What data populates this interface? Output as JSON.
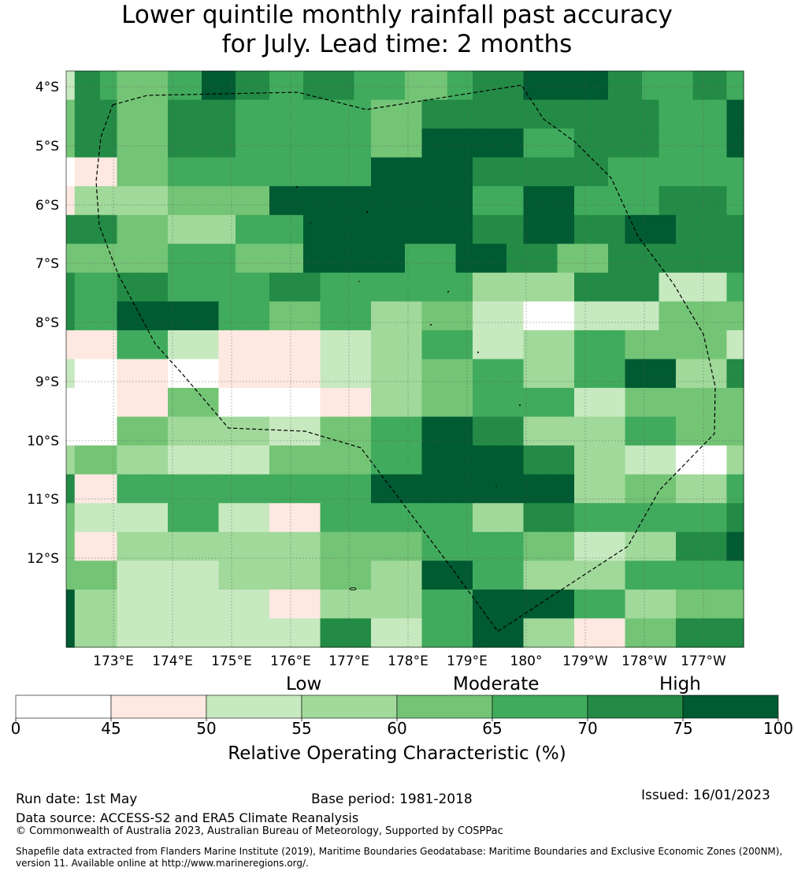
{
  "title_line1": "Lower quintile monthly rainfall past accuracy",
  "title_line2": "for July. Lead time: 2 months",
  "map": {
    "lat_labels": [
      "4°S",
      "5°S",
      "6°S",
      "7°S",
      "8°S",
      "9°S",
      "10°S",
      "11°S",
      "12°S"
    ],
    "lon_labels": [
      "173°E",
      "174°E",
      "175°E",
      "176°E",
      "177°E",
      "178°E",
      "179°E",
      "180°",
      "179°W",
      "178°W",
      "177°W"
    ],
    "cell_values_pct_bins": [
      [
        2,
        6,
        6,
        6,
        5,
        5,
        4,
        4,
        4,
        4,
        4,
        4,
        5,
        5,
        5,
        5,
        7,
        7,
        7,
        7,
        6,
        6,
        6,
        6,
        5,
        5,
        5,
        5,
        6,
        6,
        6,
        6,
        6,
        6,
        5,
        5,
        5,
        5,
        5,
        5,
        4,
        4,
        4,
        4,
        4,
        5,
        5,
        5,
        6,
        6,
        6,
        6,
        6,
        6,
        7,
        7,
        7,
        7,
        7,
        7,
        7,
        7,
        7,
        7,
        6,
        6,
        6,
        6,
        5,
        5,
        5,
        5,
        5,
        5,
        6,
        6,
        6,
        6,
        5,
        5
      ],
      [
        4,
        6,
        6,
        6,
        6,
        6,
        4,
        4,
        4,
        4,
        4,
        4,
        6,
        6,
        6,
        6,
        6,
        6,
        6,
        6,
        5,
        5,
        5,
        5,
        5,
        5,
        5,
        5,
        5,
        5,
        5,
        5,
        5,
        5,
        5,
        5,
        4,
        4,
        4,
        4,
        4,
        4,
        6,
        6,
        6,
        6,
        6,
        6,
        6,
        6,
        6,
        6,
        6,
        6,
        6,
        6,
        6,
        6,
        6,
        6,
        6,
        6,
        6,
        6,
        6,
        6,
        6,
        6,
        6,
        6,
        5,
        5,
        5,
        5,
        5,
        5,
        5,
        5,
        7,
        7
      ],
      [
        4,
        6,
        6,
        6,
        6,
        6,
        4,
        4,
        4,
        4,
        4,
        4,
        6,
        6,
        6,
        6,
        6,
        6,
        6,
        6,
        5,
        5,
        5,
        5,
        5,
        5,
        5,
        5,
        5,
        5,
        5,
        5,
        5,
        5,
        5,
        5,
        4,
        4,
        4,
        4,
        4,
        4,
        7,
        7,
        7,
        7,
        7,
        7,
        7,
        7,
        7,
        7,
        7,
        7,
        5,
        5,
        5,
        5,
        5,
        5,
        6,
        6,
        6,
        6,
        6,
        6,
        6,
        6,
        6,
        6,
        5,
        5,
        5,
        5,
        5,
        5,
        5,
        5,
        7,
        7
      ],
      [
        0,
        1,
        1,
        1,
        1,
        1,
        4,
        4,
        4,
        4,
        4,
        4,
        5,
        5,
        5,
        5,
        5,
        5,
        5,
        5,
        5,
        5,
        5,
        5,
        5,
        5,
        5,
        5,
        5,
        5,
        5,
        5,
        5,
        5,
        5,
        5,
        7,
        7,
        7,
        7,
        7,
        7,
        7,
        7,
        7,
        7,
        7,
        7,
        6,
        6,
        6,
        6,
        6,
        6,
        6,
        6,
        6,
        6,
        6,
        6,
        6,
        6,
        6,
        6,
        5,
        5,
        5,
        5,
        5,
        5,
        5,
        5,
        5,
        5,
        5,
        5,
        5,
        5,
        5,
        5
      ],
      [
        1,
        3,
        3,
        3,
        3,
        3,
        3,
        3,
        3,
        3,
        3,
        3,
        4,
        4,
        4,
        4,
        4,
        4,
        4,
        4,
        4,
        4,
        4,
        4,
        7,
        7,
        7,
        7,
        7,
        7,
        7,
        7,
        7,
        7,
        7,
        7,
        7,
        7,
        7,
        7,
        7,
        7,
        7,
        7,
        7,
        7,
        7,
        7,
        5,
        5,
        5,
        5,
        5,
        5,
        7,
        7,
        7,
        7,
        7,
        7,
        5,
        5,
        5,
        5,
        5,
        5,
        5,
        5,
        5,
        5,
        6,
        6,
        6,
        6,
        6,
        6,
        6,
        6,
        5,
        5
      ],
      [
        6,
        6,
        6,
        6,
        6,
        6,
        4,
        4,
        4,
        4,
        4,
        4,
        3,
        3,
        3,
        3,
        3,
        3,
        3,
        3,
        5,
        5,
        5,
        5,
        5,
        5,
        5,
        5,
        7,
        7,
        7,
        7,
        7,
        7,
        7,
        7,
        7,
        7,
        7,
        7,
        7,
        7,
        7,
        7,
        7,
        7,
        7,
        7,
        6,
        6,
        6,
        6,
        6,
        6,
        7,
        7,
        7,
        7,
        7,
        7,
        6,
        6,
        6,
        6,
        6,
        6,
        7,
        7,
        7,
        7,
        7,
        7,
        6,
        6,
        6,
        6,
        6,
        6,
        6,
        6
      ],
      [
        4,
        4,
        4,
        4,
        4,
        4,
        4,
        4,
        4,
        4,
        4,
        4,
        5,
        5,
        5,
        5,
        5,
        5,
        5,
        5,
        4,
        4,
        4,
        4,
        4,
        4,
        4,
        4,
        7,
        7,
        7,
        7,
        7,
        7,
        7,
        7,
        7,
        7,
        7,
        7,
        5,
        5,
        5,
        5,
        5,
        5,
        7,
        7,
        7,
        7,
        7,
        7,
        6,
        6,
        6,
        6,
        6,
        6,
        4,
        4,
        4,
        4,
        4,
        4,
        6,
        6,
        6,
        6,
        6,
        6,
        6,
        6,
        6,
        6,
        6,
        6,
        6,
        6,
        6,
        6
      ],
      [
        6,
        5,
        5,
        5,
        5,
        5,
        6,
        6,
        6,
        6,
        6,
        6,
        5,
        5,
        5,
        5,
        5,
        5,
        5,
        5,
        5,
        5,
        5,
        5,
        6,
        6,
        6,
        6,
        6,
        6,
        5,
        5,
        5,
        5,
        5,
        5,
        5,
        5,
        5,
        5,
        5,
        5,
        5,
        5,
        5,
        5,
        5,
        5,
        3,
        3,
        3,
        3,
        3,
        3,
        3,
        3,
        3,
        3,
        3,
        3,
        6,
        6,
        6,
        6,
        6,
        6,
        6,
        6,
        6,
        6,
        2,
        2,
        2,
        2,
        2,
        2,
        2,
        2,
        5,
        5
      ],
      [
        6,
        5,
        5,
        5,
        5,
        5,
        7,
        7,
        7,
        7,
        7,
        7,
        7,
        7,
        7,
        7,
        7,
        7,
        5,
        5,
        5,
        5,
        5,
        5,
        4,
        4,
        4,
        4,
        4,
        4,
        5,
        5,
        5,
        5,
        5,
        5,
        3,
        3,
        3,
        3,
        3,
        3,
        4,
        4,
        4,
        4,
        4,
        4,
        2,
        2,
        2,
        2,
        2,
        2,
        0,
        0,
        0,
        0,
        0,
        0,
        2,
        2,
        2,
        2,
        2,
        2,
        2,
        2,
        2,
        2,
        4,
        4,
        4,
        4,
        4,
        4,
        4,
        4,
        4,
        4
      ],
      [
        1,
        1,
        1,
        1,
        1,
        1,
        5,
        5,
        5,
        5,
        5,
        5,
        2,
        2,
        2,
        2,
        2,
        2,
        1,
        1,
        1,
        1,
        1,
        1,
        1,
        1,
        1,
        1,
        1,
        1,
        2,
        2,
        2,
        2,
        2,
        2,
        3,
        3,
        3,
        3,
        3,
        3,
        5,
        5,
        5,
        5,
        5,
        5,
        2,
        2,
        2,
        2,
        2,
        2,
        3,
        3,
        3,
        3,
        3,
        3,
        5,
        5,
        5,
        5,
        5,
        5,
        4,
        4,
        4,
        4,
        4,
        4,
        4,
        4,
        4,
        4,
        4,
        4,
        2,
        2
      ],
      [
        2,
        0,
        0,
        0,
        0,
        0,
        1,
        1,
        1,
        1,
        1,
        1,
        0,
        0,
        0,
        0,
        0,
        0,
        1,
        1,
        1,
        1,
        1,
        1,
        1,
        1,
        1,
        1,
        1,
        1,
        2,
        2,
        2,
        2,
        2,
        2,
        3,
        3,
        3,
        3,
        3,
        3,
        4,
        4,
        4,
        4,
        4,
        4,
        5,
        5,
        5,
        5,
        5,
        5,
        3,
        3,
        3,
        3,
        3,
        3,
        5,
        5,
        5,
        5,
        5,
        5,
        7,
        7,
        7,
        7,
        7,
        7,
        3,
        3,
        3,
        3,
        3,
        3,
        6,
        6
      ],
      [
        0,
        0,
        0,
        0,
        0,
        0,
        1,
        1,
        1,
        1,
        1,
        1,
        4,
        4,
        4,
        4,
        4,
        4,
        0,
        0,
        0,
        0,
        0,
        0,
        0,
        0,
        0,
        0,
        0,
        0,
        1,
        1,
        1,
        1,
        1,
        1,
        3,
        3,
        3,
        3,
        3,
        3,
        4,
        4,
        4,
        4,
        4,
        4,
        5,
        5,
        5,
        5,
        5,
        5,
        5,
        5,
        5,
        5,
        5,
        5,
        2,
        2,
        2,
        2,
        2,
        2,
        4,
        4,
        4,
        4,
        4,
        4,
        4,
        4,
        4,
        4,
        4,
        4,
        4,
        4
      ],
      [
        0,
        0,
        0,
        0,
        0,
        0,
        4,
        4,
        4,
        4,
        4,
        4,
        3,
        3,
        3,
        3,
        3,
        3,
        3,
        3,
        3,
        3,
        3,
        3,
        2,
        2,
        2,
        2,
        2,
        2,
        4,
        4,
        4,
        4,
        4,
        4,
        5,
        5,
        5,
        5,
        5,
        5,
        7,
        7,
        7,
        7,
        7,
        7,
        6,
        6,
        6,
        6,
        6,
        6,
        3,
        3,
        3,
        3,
        3,
        3,
        3,
        3,
        3,
        3,
        3,
        3,
        5,
        5,
        5,
        5,
        5,
        5,
        4,
        4,
        4,
        4,
        4,
        4,
        4,
        4
      ],
      [
        3,
        4,
        4,
        4,
        4,
        4,
        3,
        3,
        3,
        3,
        3,
        3,
        2,
        2,
        2,
        2,
        2,
        2,
        2,
        2,
        2,
        2,
        2,
        2,
        4,
        4,
        4,
        4,
        4,
        4,
        4,
        4,
        4,
        4,
        4,
        4,
        5,
        5,
        5,
        5,
        5,
        5,
        7,
        7,
        7,
        7,
        7,
        7,
        7,
        7,
        7,
        7,
        7,
        7,
        6,
        6,
        6,
        6,
        6,
        6,
        3,
        3,
        3,
        3,
        3,
        3,
        2,
        2,
        2,
        2,
        2,
        2,
        0,
        0,
        0,
        0,
        0,
        0,
        3,
        3
      ],
      [
        6,
        1,
        1,
        1,
        1,
        1,
        5,
        5,
        5,
        5,
        5,
        5,
        5,
        5,
        5,
        5,
        5,
        5,
        5,
        5,
        5,
        5,
        5,
        5,
        5,
        5,
        5,
        5,
        5,
        5,
        5,
        5,
        5,
        5,
        5,
        5,
        7,
        7,
        7,
        7,
        7,
        7,
        7,
        7,
        7,
        7,
        7,
        7,
        7,
        7,
        7,
        7,
        7,
        7,
        7,
        7,
        7,
        7,
        7,
        7,
        3,
        3,
        3,
        3,
        3,
        3,
        4,
        4,
        4,
        4,
        4,
        4,
        3,
        3,
        3,
        3,
        3,
        3,
        5,
        5
      ],
      [
        4,
        2,
        2,
        2,
        2,
        2,
        2,
        2,
        2,
        2,
        2,
        2,
        5,
        5,
        5,
        5,
        5,
        5,
        2,
        2,
        2,
        2,
        2,
        2,
        1,
        1,
        1,
        1,
        1,
        1,
        5,
        5,
        5,
        5,
        5,
        5,
        5,
        5,
        5,
        5,
        5,
        5,
        5,
        5,
        5,
        5,
        5,
        5,
        3,
        3,
        3,
        3,
        3,
        3,
        6,
        6,
        6,
        6,
        6,
        6,
        5,
        5,
        5,
        5,
        5,
        5,
        5,
        5,
        5,
        5,
        5,
        5,
        5,
        5,
        5,
        5,
        5,
        5,
        6,
        6
      ],
      [
        4,
        1,
        1,
        1,
        1,
        1,
        3,
        3,
        3,
        3,
        3,
        3,
        3,
        3,
        3,
        3,
        3,
        3,
        3,
        3,
        3,
        3,
        3,
        3,
        3,
        3,
        3,
        3,
        3,
        3,
        4,
        4,
        4,
        4,
        4,
        4,
        4,
        4,
        4,
        4,
        4,
        4,
        5,
        5,
        5,
        5,
        5,
        5,
        5,
        5,
        5,
        5,
        5,
        5,
        4,
        4,
        4,
        4,
        4,
        4,
        2,
        2,
        2,
        2,
        2,
        2,
        3,
        3,
        3,
        3,
        3,
        3,
        6,
        6,
        6,
        6,
        6,
        6,
        7,
        7
      ],
      [
        4,
        4,
        4,
        4,
        4,
        4,
        2,
        2,
        2,
        2,
        2,
        2,
        2,
        2,
        2,
        2,
        2,
        2,
        3,
        3,
        3,
        3,
        3,
        3,
        3,
        3,
        3,
        3,
        3,
        3,
        4,
        4,
        4,
        4,
        4,
        4,
        3,
        3,
        3,
        3,
        3,
        3,
        7,
        7,
        7,
        7,
        7,
        7,
        5,
        5,
        5,
        5,
        5,
        5,
        3,
        3,
        3,
        3,
        3,
        3,
        3,
        3,
        3,
        3,
        3,
        3,
        5,
        5,
        5,
        5,
        5,
        5,
        5,
        5,
        5,
        5,
        5,
        5,
        5,
        5
      ],
      [
        7,
        3,
        3,
        3,
        3,
        3,
        2,
        2,
        2,
        2,
        2,
        2,
        2,
        2,
        2,
        2,
        2,
        2,
        2,
        2,
        2,
        2,
        2,
        2,
        1,
        1,
        1,
        1,
        1,
        1,
        3,
        3,
        3,
        3,
        3,
        3,
        3,
        3,
        3,
        3,
        3,
        3,
        5,
        5,
        5,
        5,
        5,
        5,
        7,
        7,
        7,
        7,
        7,
        7,
        7,
        7,
        7,
        7,
        7,
        7,
        5,
        5,
        5,
        5,
        5,
        5,
        3,
        3,
        3,
        3,
        3,
        3,
        4,
        4,
        4,
        4,
        4,
        4,
        4,
        4
      ],
      [
        7,
        3,
        3,
        3,
        3,
        3,
        2,
        2,
        2,
        2,
        2,
        2,
        2,
        2,
        2,
        2,
        2,
        2,
        2,
        2,
        2,
        2,
        2,
        2,
        2,
        2,
        2,
        2,
        2,
        2,
        6,
        6,
        6,
        6,
        6,
        6,
        2,
        2,
        2,
        2,
        2,
        2,
        5,
        5,
        5,
        5,
        5,
        5,
        7,
        7,
        7,
        7,
        7,
        7,
        3,
        3,
        3,
        3,
        3,
        3,
        1,
        1,
        1,
        1,
        1,
        1,
        4,
        4,
        4,
        4,
        4,
        4,
        6,
        6,
        6,
        6,
        6,
        6,
        6,
        6
      ]
    ]
  },
  "colorbar": {
    "categories": [
      "Low",
      "Moderate",
      "High"
    ],
    "ticks": [
      "0",
      "45",
      "50",
      "55",
      "60",
      "65",
      "70",
      "75",
      "100"
    ],
    "colors": [
      "#ffffff",
      "#fde9e1",
      "#c7e9c0",
      "#a1d99b",
      "#74c476",
      "#41ab5d",
      "#238b45",
      "#005a32"
    ],
    "title": "Relative Operating Characteristic (%)"
  },
  "footer": {
    "run_date": "Run date: 1st May",
    "base_period": "Base period: 1981-2018",
    "issued": "Issued: 16/01/2023",
    "data_source": "Data source: ACCESS-S2 and ERA5 Climate Reanalysis",
    "copyright": "© Commonwealth of Australia 2023, Australian Bureau of Meteorology, Supported by COSPPac",
    "shapefile": "Shapefile data extracted from Flanders Marine Institute (2019), Maritime Boundaries Geodatabase: Maritime Boundaries and Exclusive Economic Zones (200NM), version 11. Available online at http://www.marineregions.org/."
  }
}
